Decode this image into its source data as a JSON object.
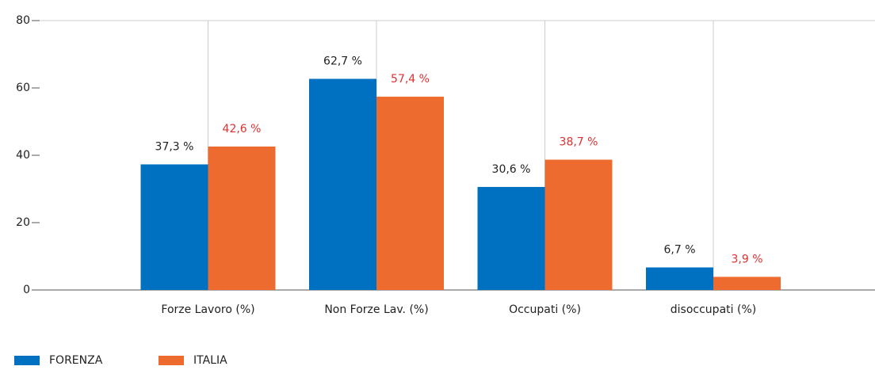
{
  "chart_data": {
    "type": "bar",
    "categories": [
      "Forze Lavoro (%)",
      "Non Forze Lav. (%)",
      "Occupati (%)",
      "disoccupati (%)"
    ],
    "series": [
      {
        "name": "FORENZA",
        "color": "#0070c0",
        "label_color": "#222222",
        "values": [
          37.3,
          62.7,
          30.6,
          6.7
        ],
        "value_labels": [
          "37,3 %",
          "62,7 %",
          "30,6 %",
          "6,7 %"
        ]
      },
      {
        "name": "ITALIA",
        "color": "#ed6b2f",
        "label_color": "#e03030",
        "values": [
          42.6,
          57.4,
          38.7,
          3.9
        ],
        "value_labels": [
          "42,6 %",
          "57,4 %",
          "38,7 %",
          "3,9 %"
        ]
      }
    ],
    "ylim": [
      0,
      80
    ],
    "yticks": [
      0,
      20,
      40,
      60,
      80
    ],
    "grid": true
  }
}
